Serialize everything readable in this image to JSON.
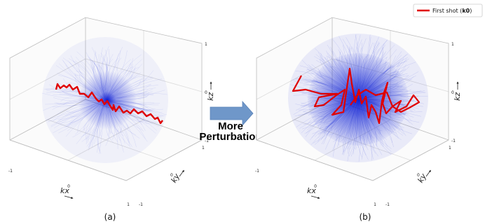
{
  "panels": [
    {
      "id": "a",
      "caption": "(a)",
      "axes": {
        "kx_label": "kx",
        "ky_label": "ky",
        "kz_label": "kz"
      },
      "ticks": {
        "kx": [
          "-1",
          "0",
          "1"
        ],
        "ky": [
          "-1",
          "0",
          "1"
        ],
        "kz": [
          "-1",
          "0",
          "1"
        ]
      }
    },
    {
      "id": "b",
      "caption": "(b)",
      "axes": {
        "kx_label": "kx",
        "ky_label": "ky",
        "kz_label": "kz"
      },
      "ticks": {
        "kx": [
          "-1",
          "0",
          "1"
        ],
        "ky": [
          "-1",
          "0",
          "1"
        ],
        "kz": [
          "-1",
          "0",
          "1"
        ]
      }
    }
  ],
  "middle": {
    "line1": "More",
    "line2": "Perturbation"
  },
  "legend": {
    "label_text": "First shot (",
    "label_bold": "k0",
    "label_close": ")",
    "color": "#e00000"
  },
  "colors": {
    "cloud": "#1a2bd6",
    "trajectory": "#e00000",
    "arrow": "#6f97c9",
    "pane": "#bdbdbd"
  }
}
